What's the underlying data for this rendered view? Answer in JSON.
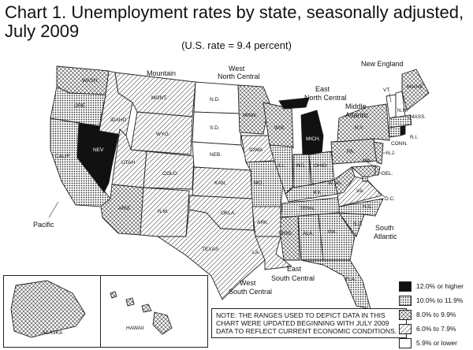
{
  "header": {
    "title_line1": "Chart 1.  Unemployment rates by state, seasonally adjusted,",
    "title_line2": "July 2009",
    "us_rate": "(U.S. rate = 9.4 percent)"
  },
  "legend": {
    "items": [
      {
        "label": "12.0% or higher",
        "pattern": "black"
      },
      {
        "label": "10.0% to 11.9%",
        "pattern": "dots"
      },
      {
        "label": "8.0% to 9.9%",
        "pattern": "cross"
      },
      {
        "label": "6.0% to 7.9%",
        "pattern": "diag"
      },
      {
        "label": "5.9% or lower",
        "pattern": "white"
      }
    ]
  },
  "note": "NOTE:  THE RANGES USED TO DEPICT DATA IN THIS CHART WERE UPDATED BEGINNING WITH JULY 2009 DATA TO REFLECT CURRENT ECONOMIC CONDITIONS.",
  "regions": {
    "mountain": "Mountain",
    "west_north_central_1": "West",
    "west_north_central_2": "North Central",
    "east_north_central_1": "East",
    "east_north_central_2": "North Central",
    "new_england": "New England",
    "middle_atlantic_1": "Middle",
    "middle_atlantic_2": "Atlantic",
    "pacific": "Pacific",
    "south_atlantic_1": "South",
    "south_atlantic_2": "Atlantic",
    "east_south_central_1": "East",
    "east_south_central_2": "South Central",
    "west_south_central_1": "West",
    "west_south_central_2": "South Central"
  },
  "states": {
    "wash": "WASH.",
    "ore": "ORE.",
    "calif": "CALIF.",
    "nev": "NEV",
    "idaho": "IDAHO",
    "mont": "MONT.",
    "wyo": "WYO.",
    "utah": "UTAH",
    "colo": "COLO.",
    "ariz": "ARIZ.",
    "nm": "N.M.",
    "nd": "N.D.",
    "sd": "S.D.",
    "neb": "NEB.",
    "kan": "KAN.",
    "okla": "OKLA.",
    "texas": "TEXAS",
    "minn": "MINN.",
    "iowa": "IOWA",
    "mo": "MO.",
    "ark": "ARK.",
    "la": "LA.",
    "wis": "WIS.",
    "ill": "ILL.",
    "mich": "MICH.",
    "ind": "IND.",
    "ohio": "OHIO",
    "ky": "KY.",
    "tenn": "TENN.",
    "miss": "MISS.",
    "ala": "ALA.",
    "ga": "GA.",
    "fla": "FLA.",
    "sc": "S.C.",
    "nc": "N.C.",
    "va": "VA.",
    "wva": "W.VA.",
    "md": "MD.",
    "del": "DEL.",
    "dc": "D.C.",
    "pa": "PA.",
    "ny": "N.Y.",
    "nj": "N.J.",
    "vt": "VT.",
    "nh": "N.H.",
    "maine": "MAINE",
    "mass": "MASS.",
    "conn": "CONN.",
    "ri": "R.I.",
    "alaska": "ALASKA",
    "hawaii": "HAWAII"
  }
}
